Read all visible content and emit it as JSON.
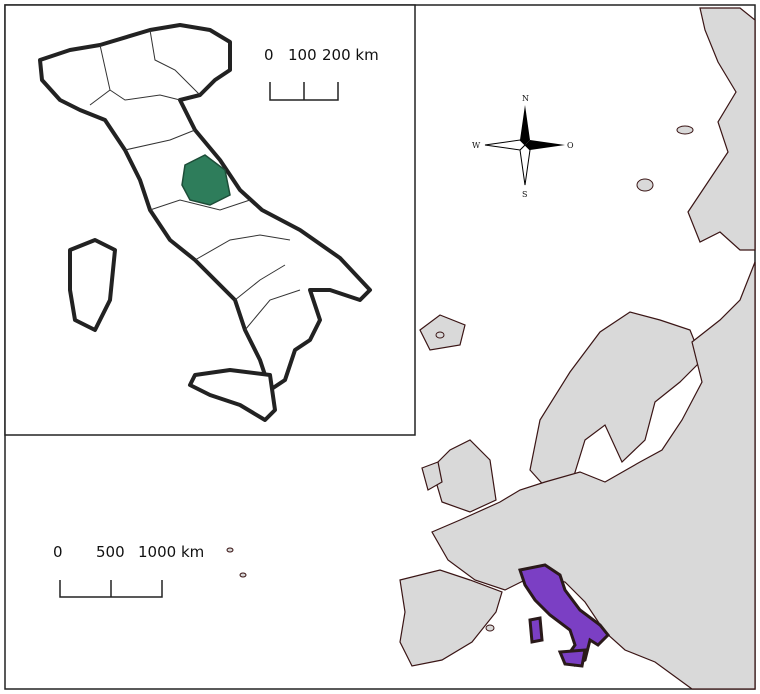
{
  "inset_map": {
    "scale_bar": {
      "labels": [
        "0",
        "100",
        "200 km"
      ]
    }
  },
  "main_map": {
    "scale_bar": {
      "labels": [
        "0",
        "500",
        "1000 km"
      ]
    },
    "compass": {
      "north": "N",
      "west": "W",
      "east": "O",
      "south": "S"
    }
  }
}
